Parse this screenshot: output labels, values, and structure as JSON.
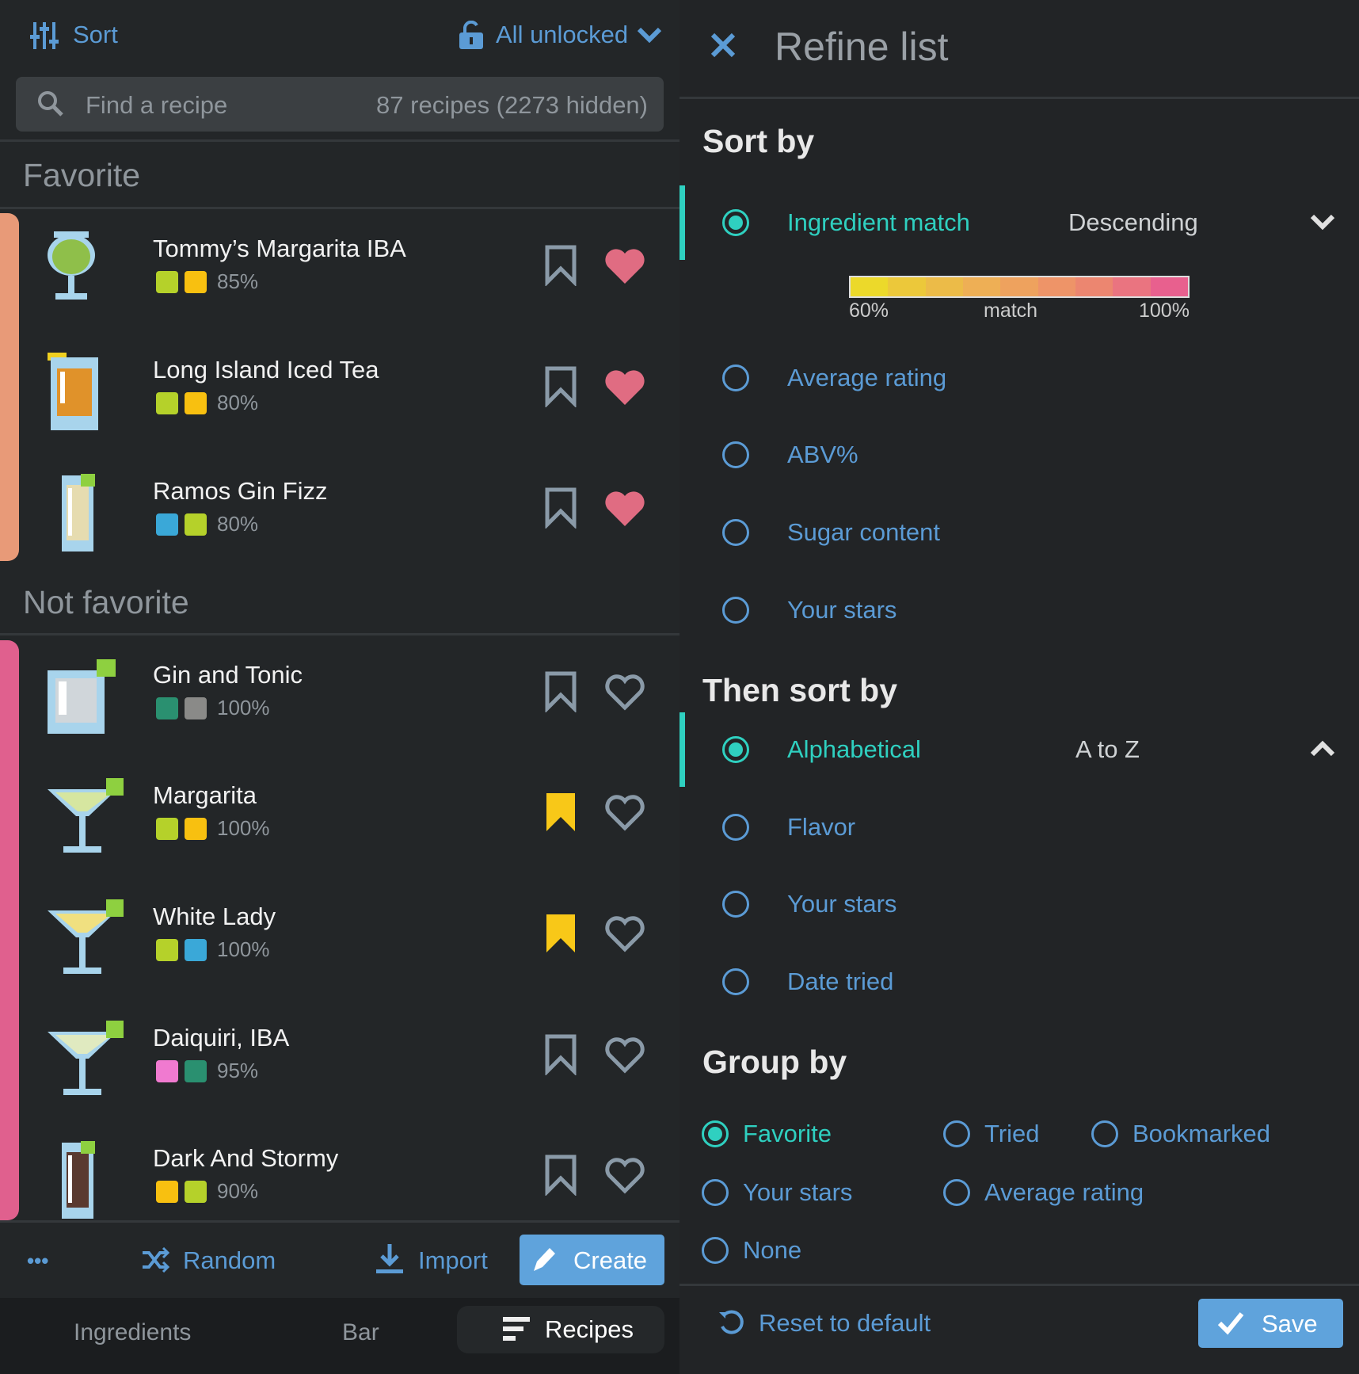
{
  "topbar": {
    "sort_label": "Sort",
    "lock_label": "All unlocked"
  },
  "search": {
    "placeholder": "Find a recipe",
    "count": "87 recipes (2273 hidden)"
  },
  "groups": [
    {
      "title": "Favorite",
      "bar_color": "#e89a78",
      "recipes": [
        {
          "name": "Tommy’s Margarita IBA",
          "swatches": [
            "#b5d12a",
            "#f8c010"
          ],
          "match": "85%",
          "bookmarked": false,
          "favorite": true,
          "glass": "goblet",
          "liquid": "#8fbf4a"
        },
        {
          "name": "Long Island Iced Tea",
          "swatches": [
            "#b5d12a",
            "#f8c010"
          ],
          "match": "80%",
          "bookmarked": false,
          "favorite": true,
          "glass": "highball",
          "liquid": "#e0922a"
        },
        {
          "name": "Ramos Gin Fizz",
          "swatches": [
            "#3aa8d8",
            "#b5d12a"
          ],
          "match": "80%",
          "bookmarked": false,
          "favorite": true,
          "glass": "collins",
          "liquid": "#e6dcb0"
        }
      ]
    },
    {
      "title": "Not favorite",
      "bar_color": "#e0608e",
      "recipes": [
        {
          "name": "Gin and Tonic",
          "swatches": [
            "#2a9070",
            "#8a8a88"
          ],
          "match": "100%",
          "bookmarked": false,
          "favorite": false,
          "glass": "rocks",
          "liquid": "#d0d6da"
        },
        {
          "name": "Margarita",
          "swatches": [
            "#b5d12a",
            "#f8c010"
          ],
          "match": "100%",
          "bookmarked": true,
          "favorite": false,
          "glass": "martini",
          "liquid": "#d6e6a0"
        },
        {
          "name": "White Lady",
          "swatches": [
            "#b5d12a",
            "#3aa8d8"
          ],
          "match": "100%",
          "bookmarked": true,
          "favorite": false,
          "glass": "martini",
          "liquid": "#f0e080"
        },
        {
          "name": "Daiquiri, IBA",
          "swatches": [
            "#f07ad0",
            "#2a9070"
          ],
          "match": "95%",
          "bookmarked": false,
          "favorite": false,
          "glass": "martini",
          "liquid": "#e0eac0"
        },
        {
          "name": "Dark And Stormy",
          "swatches": [
            "#f8c010",
            "#b5d12a"
          ],
          "match": "90%",
          "bookmarked": false,
          "favorite": false,
          "glass": "collins",
          "liquid": "#5a3a30"
        }
      ]
    }
  ],
  "actions": {
    "more": "•••",
    "random": "Random",
    "import": "Import",
    "create": "Create"
  },
  "tabs": {
    "ingredients": "Ingredients",
    "bar": "Bar",
    "recipes": "Recipes"
  },
  "refine": {
    "title": "Refine list",
    "sort_by": {
      "title": "Sort by",
      "selected_order": "Descending",
      "options": [
        "Ingredient match",
        "Average rating",
        "ABV%",
        "Sugar content",
        "Your stars"
      ],
      "selected": 0
    },
    "legend": {
      "min": "60%",
      "label": "match",
      "max": "100%",
      "colors": [
        "#ecd92a",
        "#ecc83a",
        "#ecbb48",
        "#eeaf55",
        "#eea25e",
        "#ee9468",
        "#ec8670",
        "#ea7480",
        "#e8608e"
      ]
    },
    "then_sort_by": {
      "title": "Then sort by",
      "selected_order": "A to Z",
      "options": [
        "Alphabetical",
        "Flavor",
        "Your stars",
        "Date tried"
      ],
      "selected": 0
    },
    "group_by": {
      "title": "Group by",
      "options": [
        "Favorite",
        "Tried",
        "Bookmarked",
        "Your stars",
        "Average rating",
        "None"
      ],
      "selected": 0
    },
    "reset": "Reset to default",
    "save": "Save"
  },
  "colors": {
    "accent": "#5b9bd5",
    "teal": "#2fd0c0",
    "heart": "#e06c82",
    "bookmark_active": "#f8c818",
    "bookmark": "#8a9aa8"
  }
}
